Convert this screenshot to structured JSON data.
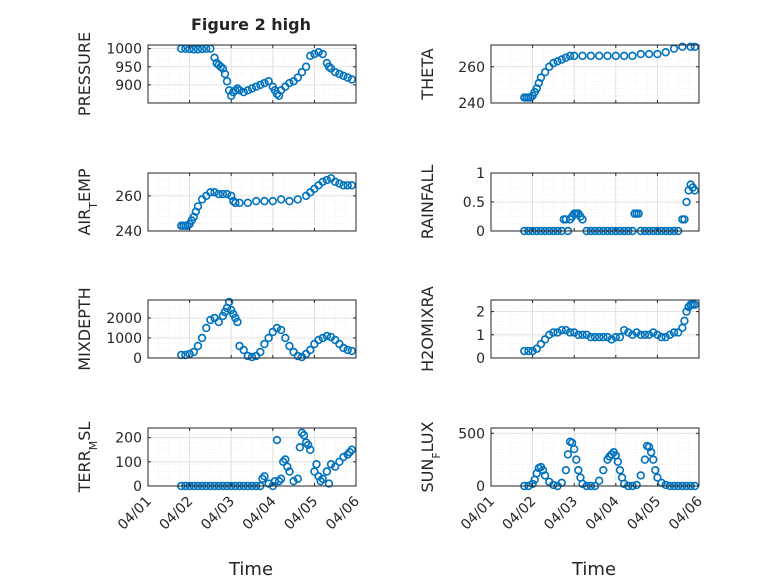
{
  "figure": {
    "title": "Figure 2 high"
  },
  "colors": {
    "marker": "#0072BD",
    "axis": "#262626",
    "grid": "#dcdcdc",
    "gridMinor": "#ececec"
  },
  "time_labels": [
    "04/01",
    "04/02",
    "04/03",
    "04/04",
    "04/05",
    "04/06"
  ],
  "xlabel_bottom": "Time",
  "chart_data": [
    {
      "type": "scatter",
      "ylabel": "PRESSURE",
      "ylim": [
        850,
        1010
      ],
      "yticks": [
        900,
        950,
        1000
      ],
      "ytick_labels": [
        "900",
        "950",
        "1000"
      ],
      "xlim": [
        0,
        5
      ],
      "grid": true,
      "minor_grid": true,
      "x": [
        0.8,
        0.9,
        1.0,
        1.1,
        1.2,
        1.3,
        1.4,
        1.5,
        1.6,
        1.65,
        1.7,
        1.75,
        1.8,
        1.85,
        1.9,
        1.95,
        2.0,
        2.05,
        2.1,
        2.15,
        2.2,
        2.3,
        2.4,
        2.5,
        2.6,
        2.7,
        2.8,
        2.9,
        3.0,
        3.05,
        3.1,
        3.15,
        3.2,
        3.3,
        3.4,
        3.5,
        3.6,
        3.7,
        3.8,
        3.9,
        4.0,
        4.1,
        4.2,
        4.3,
        4.35,
        4.4,
        4.5,
        4.6,
        4.7,
        4.8,
        4.9
      ],
      "y": [
        1000,
        1000,
        999,
        998,
        998,
        999,
        1000,
        1000,
        975,
        960,
        955,
        950,
        945,
        930,
        910,
        885,
        870,
        880,
        885,
        890,
        885,
        880,
        885,
        890,
        895,
        900,
        905,
        910,
        895,
        885,
        875,
        870,
        885,
        895,
        905,
        910,
        920,
        935,
        950,
        980,
        985,
        990,
        985,
        960,
        950,
        945,
        935,
        930,
        925,
        920,
        915
      ]
    },
    {
      "type": "scatter",
      "ylabel": "THETA",
      "ylim": [
        240,
        272
      ],
      "yticks": [
        240,
        260
      ],
      "ytick_labels": [
        "240",
        "260"
      ],
      "xlim": [
        0,
        5
      ],
      "grid": true,
      "minor_grid": true,
      "x": [
        0.8,
        0.85,
        0.9,
        0.95,
        1.0,
        1.05,
        1.1,
        1.15,
        1.2,
        1.3,
        1.4,
        1.5,
        1.6,
        1.7,
        1.8,
        1.9,
        2.0,
        2.2,
        2.4,
        2.6,
        2.8,
        3.0,
        3.2,
        3.4,
        3.6,
        3.8,
        4.0,
        4.2,
        4.4,
        4.6,
        4.8,
        4.9
      ],
      "y": [
        243,
        243,
        243,
        243,
        244,
        246,
        248,
        251,
        254,
        257,
        260,
        262,
        263,
        264,
        265,
        266,
        266,
        266,
        266,
        266,
        266,
        266,
        266,
        266,
        267,
        267,
        267,
        268,
        270,
        271,
        271,
        271
      ]
    },
    {
      "type": "scatter",
      "ylabel": "AIR_TEMP",
      "ylim": [
        240,
        273
      ],
      "yticks": [
        240,
        260
      ],
      "ytick_labels": [
        "240",
        "260"
      ],
      "xlim": [
        0,
        5
      ],
      "grid": true,
      "minor_grid": true,
      "x": [
        0.8,
        0.85,
        0.9,
        0.95,
        1.0,
        1.05,
        1.1,
        1.15,
        1.2,
        1.3,
        1.4,
        1.5,
        1.6,
        1.7,
        1.8,
        1.9,
        2.0,
        2.05,
        2.1,
        2.2,
        2.4,
        2.6,
        2.8,
        3.0,
        3.2,
        3.4,
        3.6,
        3.8,
        3.9,
        4.0,
        4.1,
        4.2,
        4.3,
        4.4,
        4.5,
        4.6,
        4.7,
        4.8,
        4.9
      ],
      "y": [
        243,
        243,
        243,
        243,
        244,
        246,
        248,
        251,
        254,
        258,
        260,
        262,
        262,
        261,
        261,
        261,
        260,
        257,
        256,
        256,
        256,
        257,
        257,
        257,
        258,
        257,
        258,
        260,
        262,
        264,
        266,
        268,
        269,
        270,
        268,
        267,
        266,
        266,
        266
      ]
    },
    {
      "type": "scatter",
      "ylabel": "RAINFALL",
      "ylim": [
        0,
        1
      ],
      "yticks": [
        0,
        0.5,
        1
      ],
      "ytick_labels": [
        "0",
        "0.5",
        "1"
      ],
      "xlim": [
        0,
        5
      ],
      "grid": true,
      "minor_grid": true,
      "x": [
        0.8,
        0.9,
        1.0,
        1.1,
        1.2,
        1.3,
        1.4,
        1.5,
        1.6,
        1.7,
        1.75,
        1.8,
        1.85,
        1.9,
        1.95,
        2.0,
        2.05,
        2.1,
        2.15,
        2.2,
        2.3,
        2.4,
        2.5,
        2.6,
        2.7,
        2.8,
        2.9,
        3.0,
        3.1,
        3.2,
        3.3,
        3.4,
        3.45,
        3.5,
        3.55,
        3.6,
        3.7,
        3.8,
        3.9,
        4.0,
        4.1,
        4.2,
        4.3,
        4.4,
        4.5,
        4.6,
        4.65,
        4.7,
        4.75,
        4.8,
        4.85,
        4.9
      ],
      "y": [
        0,
        0,
        0,
        0,
        0,
        0,
        0,
        0,
        0,
        0,
        0.2,
        0.2,
        0,
        0.2,
        0.25,
        0.3,
        0.3,
        0.3,
        0.25,
        0.2,
        0,
        0,
        0,
        0,
        0,
        0,
        0,
        0,
        0,
        0,
        0,
        0,
        0.3,
        0.3,
        0.3,
        0,
        0,
        0,
        0,
        0,
        0,
        0,
        0,
        0,
        0,
        0.2,
        0.2,
        0.5,
        0.7,
        0.8,
        0.75,
        0.7
      ]
    },
    {
      "type": "scatter",
      "ylabel": "MIXDEPTH",
      "ylim": [
        0,
        2900
      ],
      "yticks": [
        0,
        1000,
        2000
      ],
      "ytick_labels": [
        "0",
        "1000",
        "2000"
      ],
      "xlim": [
        0,
        5
      ],
      "grid": true,
      "minor_grid": true,
      "x": [
        0.8,
        0.9,
        1.0,
        1.1,
        1.2,
        1.3,
        1.4,
        1.5,
        1.6,
        1.7,
        1.8,
        1.85,
        1.9,
        1.95,
        2.0,
        2.05,
        2.1,
        2.15,
        2.2,
        2.3,
        2.4,
        2.5,
        2.6,
        2.7,
        2.8,
        2.9,
        3.0,
        3.1,
        3.2,
        3.3,
        3.4,
        3.5,
        3.6,
        3.7,
        3.8,
        3.9,
        4.0,
        4.1,
        4.2,
        4.3,
        4.4,
        4.5,
        4.6,
        4.7,
        4.8,
        4.9
      ],
      "y": [
        150,
        150,
        200,
        300,
        600,
        1000,
        1500,
        1900,
        2000,
        1800,
        2100,
        2300,
        2500,
        2800,
        2400,
        2200,
        2000,
        1800,
        600,
        400,
        100,
        50,
        100,
        300,
        700,
        1000,
        1300,
        1500,
        1400,
        1000,
        600,
        300,
        100,
        50,
        200,
        400,
        700,
        900,
        1000,
        1100,
        1050,
        900,
        700,
        500,
        400,
        350
      ]
    },
    {
      "type": "scatter",
      "ylabel": "H2OMIXRA",
      "ylim": [
        0,
        2.5
      ],
      "yticks": [
        0,
        1,
        2
      ],
      "ytick_labels": [
        "0",
        "1",
        "2"
      ],
      "xlim": [
        0,
        5
      ],
      "grid": true,
      "minor_grid": true,
      "x": [
        0.8,
        0.9,
        1.0,
        1.1,
        1.2,
        1.3,
        1.4,
        1.5,
        1.6,
        1.7,
        1.8,
        1.9,
        2.0,
        2.1,
        2.2,
        2.3,
        2.4,
        2.5,
        2.6,
        2.7,
        2.8,
        2.9,
        3.0,
        3.1,
        3.2,
        3.3,
        3.4,
        3.5,
        3.6,
        3.7,
        3.8,
        3.9,
        4.0,
        4.1,
        4.2,
        4.3,
        4.4,
        4.5,
        4.6,
        4.65,
        4.7,
        4.75,
        4.8,
        4.85,
        4.9
      ],
      "y": [
        0.3,
        0.3,
        0.3,
        0.4,
        0.6,
        0.8,
        1.0,
        1.1,
        1.1,
        1.2,
        1.2,
        1.1,
        1.1,
        1.0,
        1.0,
        1.0,
        0.9,
        0.9,
        0.9,
        0.9,
        0.9,
        0.8,
        0.9,
        0.9,
        1.2,
        1.1,
        1.0,
        1.1,
        1.0,
        1.0,
        1.0,
        1.1,
        1.0,
        0.9,
        0.9,
        1.0,
        1.1,
        1.1,
        1.3,
        1.6,
        2.0,
        2.2,
        2.3,
        2.3,
        2.3
      ]
    },
    {
      "type": "scatter",
      "ylabel": "TERR_MSL",
      "ylim": [
        0,
        240
      ],
      "yticks": [
        0,
        100,
        200
      ],
      "ytick_labels": [
        "0",
        "100",
        "200"
      ],
      "xlim": [
        0,
        5
      ],
      "grid": true,
      "minor_grid": true,
      "x": [
        0.8,
        0.9,
        1.0,
        1.1,
        1.2,
        1.3,
        1.4,
        1.5,
        1.6,
        1.7,
        1.8,
        1.9,
        2.0,
        2.1,
        2.2,
        2.3,
        2.4,
        2.5,
        2.6,
        2.7,
        2.75,
        2.8,
        2.9,
        3.0,
        3.05,
        3.1,
        3.15,
        3.2,
        3.25,
        3.3,
        3.35,
        3.4,
        3.5,
        3.6,
        3.65,
        3.7,
        3.75,
        3.8,
        3.85,
        3.9,
        4.0,
        4.05,
        4.1,
        4.15,
        4.2,
        4.3,
        4.35,
        4.4,
        4.5,
        4.6,
        4.7,
        4.8,
        4.85,
        4.9
      ],
      "y": [
        0,
        0,
        0,
        0,
        0,
        0,
        0,
        0,
        0,
        0,
        0,
        0,
        0,
        0,
        0,
        0,
        0,
        0,
        0,
        0,
        30,
        40,
        10,
        0,
        20,
        190,
        20,
        30,
        100,
        110,
        80,
        60,
        20,
        30,
        160,
        220,
        210,
        180,
        170,
        150,
        60,
        90,
        40,
        20,
        30,
        60,
        10,
        90,
        80,
        100,
        120,
        130,
        140,
        150
      ]
    },
    {
      "type": "scatter",
      "ylabel": "SUN_FLUX",
      "ylim": [
        0,
        550
      ],
      "yticks": [
        0,
        500
      ],
      "ytick_labels": [
        "0",
        "500"
      ],
      "xlim": [
        0,
        5
      ],
      "grid": true,
      "minor_grid": true,
      "x": [
        0.8,
        0.9,
        1.0,
        1.05,
        1.1,
        1.15,
        1.2,
        1.25,
        1.3,
        1.4,
        1.5,
        1.6,
        1.7,
        1.8,
        1.85,
        1.9,
        1.95,
        2.0,
        2.05,
        2.1,
        2.15,
        2.2,
        2.3,
        2.4,
        2.5,
        2.6,
        2.7,
        2.8,
        2.85,
        2.9,
        2.95,
        3.0,
        3.05,
        3.1,
        3.15,
        3.2,
        3.3,
        3.4,
        3.5,
        3.6,
        3.7,
        3.75,
        3.8,
        3.85,
        3.9,
        3.95,
        4.0,
        4.1,
        4.2,
        4.3,
        4.4,
        4.5,
        4.6,
        4.7,
        4.8,
        4.9
      ],
      "y": [
        0,
        0,
        20,
        60,
        120,
        170,
        180,
        150,
        100,
        40,
        10,
        0,
        30,
        150,
        300,
        420,
        410,
        350,
        250,
        150,
        80,
        20,
        0,
        0,
        0,
        50,
        150,
        250,
        280,
        300,
        320,
        290,
        230,
        150,
        80,
        20,
        0,
        0,
        10,
        100,
        250,
        380,
        370,
        320,
        250,
        150,
        80,
        30,
        10,
        0,
        0,
        0,
        0,
        0,
        0,
        0
      ]
    }
  ]
}
